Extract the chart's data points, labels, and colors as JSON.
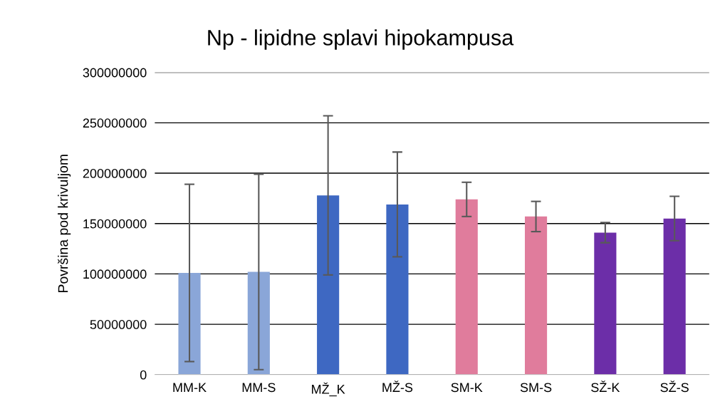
{
  "chart_data": {
    "type": "bar",
    "title": "Np - lipidne splavi hipokampusa",
    "ylabel": "Površina pod krivuljom",
    "categories": [
      "MM-K",
      "MM-S",
      "MŽ_K",
      "MŽ-S",
      "SM-K",
      "SM-S",
      "SŽ-K",
      "SŽ-S"
    ],
    "values": [
      101000000,
      102000000,
      178000000,
      169000000,
      174000000,
      157000000,
      141000000,
      155000000
    ],
    "errors": [
      88000000,
      97000000,
      79000000,
      52000000,
      17000000,
      15000000,
      10000000,
      22000000
    ],
    "colors": [
      "#8aa6d8",
      "#8aa6d8",
      "#3e68c2",
      "#3e68c2",
      "#e07c9c",
      "#e07c9c",
      "#6c2ea8",
      "#6c2ea8"
    ],
    "ylim": [
      0,
      300000000
    ],
    "yticks": [
      0,
      50000000,
      100000000,
      150000000,
      200000000,
      250000000,
      300000000
    ],
    "grid": "y"
  }
}
